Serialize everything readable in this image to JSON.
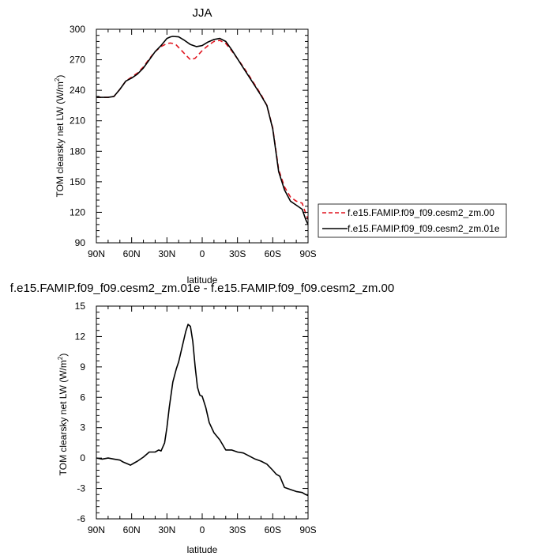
{
  "colors": {
    "series_control": "#e0141e",
    "series_test": "#000000",
    "axis": "#000000",
    "background": "#ffffff"
  },
  "chart_data": [
    {
      "type": "line",
      "title": "JJA",
      "xlabel": "latitude",
      "ylabel_main": "TOM clearsky net LW (W/m",
      "ylabel_sup": "2",
      "ylabel_close": ")",
      "x_direction": "north-to-south",
      "xlim": [
        90,
        -90
      ],
      "ylim": [
        90,
        300
      ],
      "xticks": [
        {
          "value": 90,
          "label": "90N"
        },
        {
          "value": 60,
          "label": "60N"
        },
        {
          "value": 30,
          "label": "30N"
        },
        {
          "value": 0,
          "label": "0"
        },
        {
          "value": -30,
          "label": "30S"
        },
        {
          "value": -60,
          "label": "60S"
        },
        {
          "value": -90,
          "label": "90S"
        }
      ],
      "yticks": [
        {
          "value": 90,
          "label": "90"
        },
        {
          "value": 120,
          "label": "120"
        },
        {
          "value": 150,
          "label": "150"
        },
        {
          "value": 180,
          "label": "180"
        },
        {
          "value": 210,
          "label": "210"
        },
        {
          "value": 240,
          "label": "240"
        },
        {
          "value": 270,
          "label": "270"
        },
        {
          "value": 300,
          "label": "300"
        }
      ],
      "grid": false,
      "legend_position": "right-middle",
      "series": [
        {
          "name": "f.e15.FAMIP.f09_f09.cesm2_zm.00",
          "style": "dashed",
          "color": "#e0141e",
          "x": [
            90,
            85,
            80,
            75,
            70,
            65,
            60,
            55,
            50,
            45,
            40,
            35,
            30,
            27,
            25,
            22,
            20,
            15,
            10,
            6,
            4,
            0,
            -5,
            -10,
            -15,
            -20,
            -25,
            -30,
            -35,
            -40,
            -45,
            -50,
            -55,
            -60,
            -65,
            -70,
            -75,
            -80,
            -85,
            -88,
            -90
          ],
          "y": [
            233,
            233,
            233,
            234,
            241,
            249,
            253,
            257,
            263,
            271,
            278,
            283,
            286,
            286.5,
            286,
            284.5,
            282,
            276,
            270,
            271.5,
            274,
            279,
            284,
            288,
            289,
            286,
            279,
            271,
            263,
            254,
            245,
            236,
            225,
            203,
            162,
            145,
            135,
            131,
            129,
            119,
            113
          ]
        },
        {
          "name": "f.e15.FAMIP.f09_f09.cesm2_zm.01e",
          "style": "solid",
          "color": "#000000",
          "x": [
            90,
            85,
            80,
            75,
            70,
            65,
            60,
            55,
            50,
            45,
            40,
            35,
            30,
            27,
            25,
            20,
            15,
            10,
            5,
            0,
            -5,
            -10,
            -15,
            -20,
            -25,
            -30,
            -35,
            -40,
            -45,
            -50,
            -55,
            -60,
            -65,
            -70,
            -75,
            -80,
            -85,
            -88,
            -90
          ],
          "y": [
            233,
            233,
            233,
            234,
            241,
            249,
            252,
            256,
            262,
            270,
            278,
            284,
            291,
            292.5,
            293,
            292.5,
            289,
            285,
            283,
            284,
            287.5,
            290,
            291,
            288,
            280,
            271,
            262,
            253,
            244,
            235,
            225,
            202,
            160,
            142,
            131,
            127,
            123,
            113,
            108
          ]
        }
      ]
    },
    {
      "type": "line",
      "title": "f.e15.FAMIP.f09_f09.cesm2_zm.01e - f.e15.FAMIP.f09_f09.cesm2_zm.00",
      "xlabel": "latitude",
      "ylabel_main": "TOM clearsky net LW (W/m",
      "ylabel_sup": "2",
      "ylabel_close": ")",
      "x_direction": "north-to-south",
      "xlim": [
        90,
        -90
      ],
      "ylim": [
        -6,
        15
      ],
      "xticks": [
        {
          "value": 90,
          "label": "90N"
        },
        {
          "value": 60,
          "label": "60N"
        },
        {
          "value": 30,
          "label": "30N"
        },
        {
          "value": 0,
          "label": "0"
        },
        {
          "value": -30,
          "label": "30S"
        },
        {
          "value": -60,
          "label": "60S"
        },
        {
          "value": -90,
          "label": "90S"
        }
      ],
      "yticks": [
        {
          "value": -6,
          "label": "-6"
        },
        {
          "value": -3,
          "label": "-3"
        },
        {
          "value": 0,
          "label": "0"
        },
        {
          "value": 3,
          "label": "3"
        },
        {
          "value": 6,
          "label": "6"
        },
        {
          "value": 9,
          "label": "9"
        },
        {
          "value": 12,
          "label": "12"
        },
        {
          "value": 15,
          "label": "15"
        }
      ],
      "grid": false,
      "series": [
        {
          "style": "solid",
          "color": "#000000",
          "x": [
            90,
            85,
            80,
            75,
            70,
            67,
            63,
            61,
            58,
            55,
            50,
            45,
            40,
            37,
            35,
            32,
            30,
            28,
            25,
            22,
            20,
            17,
            14,
            12,
            10,
            8,
            6,
            4,
            2,
            0,
            -3,
            -6,
            -10,
            -15,
            -20,
            -25,
            -30,
            -35,
            -40,
            -45,
            -50,
            -55,
            -60,
            -63,
            -66,
            -70,
            -75,
            -80,
            -85,
            -88,
            -90
          ],
          "y": [
            0,
            -0.1,
            0,
            -0.1,
            -0.2,
            -0.4,
            -0.6,
            -0.7,
            -0.5,
            -0.3,
            0.1,
            0.6,
            0.6,
            0.8,
            0.7,
            1.5,
            3.0,
            5.0,
            7.5,
            8.8,
            9.5,
            11.0,
            12.5,
            13.2,
            13.0,
            11.5,
            9.0,
            7.0,
            6.2,
            6.1,
            5.0,
            3.5,
            2.5,
            1.8,
            0.8,
            0.8,
            0.6,
            0.5,
            0.2,
            -0.1,
            -0.3,
            -0.6,
            -1.2,
            -1.6,
            -1.8,
            -2.9,
            -3.1,
            -3.3,
            -3.4,
            -3.6,
            -3.7
          ]
        }
      ]
    }
  ]
}
